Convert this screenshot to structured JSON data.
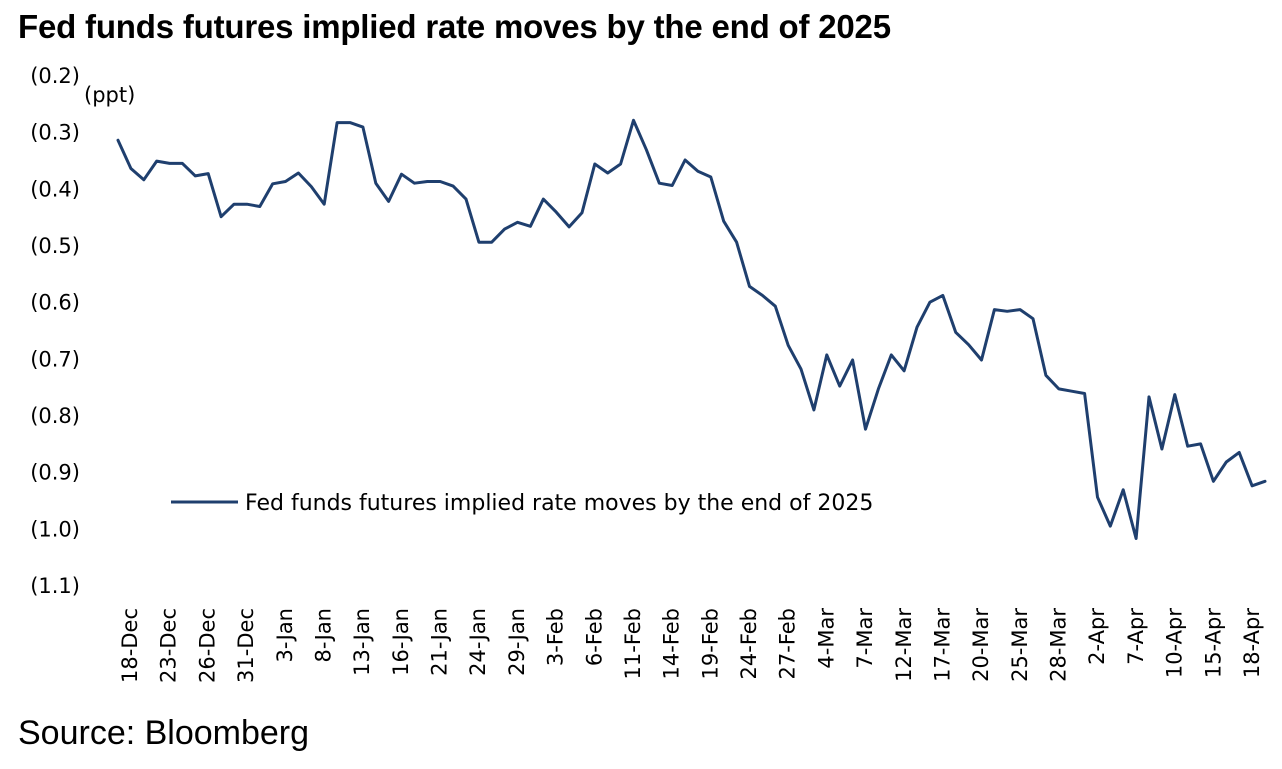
{
  "title": "Fed funds futures implied rate moves by the end of 2025",
  "source": "Source: Bloomberg",
  "chart_data": {
    "type": "line",
    "title": "Fed funds futures implied rate moves by the end of 2025",
    "ylabel": "(ppt)",
    "ylim": [
      -1.1,
      -0.2
    ],
    "y_ticks": [
      {
        "value": -0.2,
        "label": "(0.2)"
      },
      {
        "value": -0.3,
        "label": "(0.3)"
      },
      {
        "value": -0.4,
        "label": "(0.4)"
      },
      {
        "value": -0.5,
        "label": "(0.5)"
      },
      {
        "value": -0.6,
        "label": "(0.6)"
      },
      {
        "value": -0.7,
        "label": "(0.7)"
      },
      {
        "value": -0.8,
        "label": "(0.8)"
      },
      {
        "value": -0.9,
        "label": "(0.9)"
      },
      {
        "value": -1.0,
        "label": "(1.0)"
      },
      {
        "value": -1.1,
        "label": "(1.1)"
      }
    ],
    "x_ticks": [
      "18-Dec",
      "23-Dec",
      "26-Dec",
      "31-Dec",
      "3-Jan",
      "8-Jan",
      "13-Jan",
      "16-Jan",
      "21-Jan",
      "24-Jan",
      "29-Jan",
      "3-Feb",
      "6-Feb",
      "11-Feb",
      "14-Feb",
      "19-Feb",
      "24-Feb",
      "27-Feb",
      "4-Mar",
      "7-Mar",
      "12-Mar",
      "17-Mar",
      "20-Mar",
      "25-Mar",
      "28-Mar",
      "2-Apr",
      "7-Apr",
      "10-Apr",
      "15-Apr",
      "18-Apr"
    ],
    "grid": false,
    "legend_position": "lower-center",
    "series": [
      {
        "name": "Fed funds futures implied rate moves by the end of 2025",
        "color": "#1f3f6e",
        "values": [
          -0.315,
          -0.365,
          -0.385,
          -0.352,
          -0.356,
          -0.356,
          -0.378,
          -0.374,
          -0.45,
          -0.428,
          -0.428,
          -0.432,
          -0.392,
          -0.388,
          -0.373,
          -0.397,
          -0.428,
          -0.284,
          -0.284,
          -0.292,
          -0.391,
          -0.423,
          -0.375,
          -0.391,
          -0.388,
          -0.388,
          -0.396,
          -0.419,
          -0.495,
          -0.495,
          -0.472,
          -0.46,
          -0.467,
          -0.419,
          -0.442,
          -0.468,
          -0.443,
          -0.357,
          -0.373,
          -0.357,
          -0.28,
          -0.332,
          -0.391,
          -0.395,
          -0.35,
          -0.37,
          -0.38,
          -0.458,
          -0.495,
          -0.573,
          -0.589,
          -0.608,
          -0.677,
          -0.719,
          -0.791,
          -0.694,
          -0.749,
          -0.703,
          -0.825,
          -0.754,
          -0.694,
          -0.722,
          -0.645,
          -0.601,
          -0.589,
          -0.654,
          -0.676,
          -0.703,
          -0.614,
          -0.617,
          -0.614,
          -0.63,
          -0.73,
          -0.754,
          -0.758,
          -0.762,
          -0.945,
          -0.996,
          -0.932,
          -1.018,
          -0.768,
          -0.86,
          -0.764,
          -0.855,
          -0.851,
          -0.917,
          -0.883,
          -0.866,
          -0.925,
          -0.917
        ]
      }
    ]
  }
}
